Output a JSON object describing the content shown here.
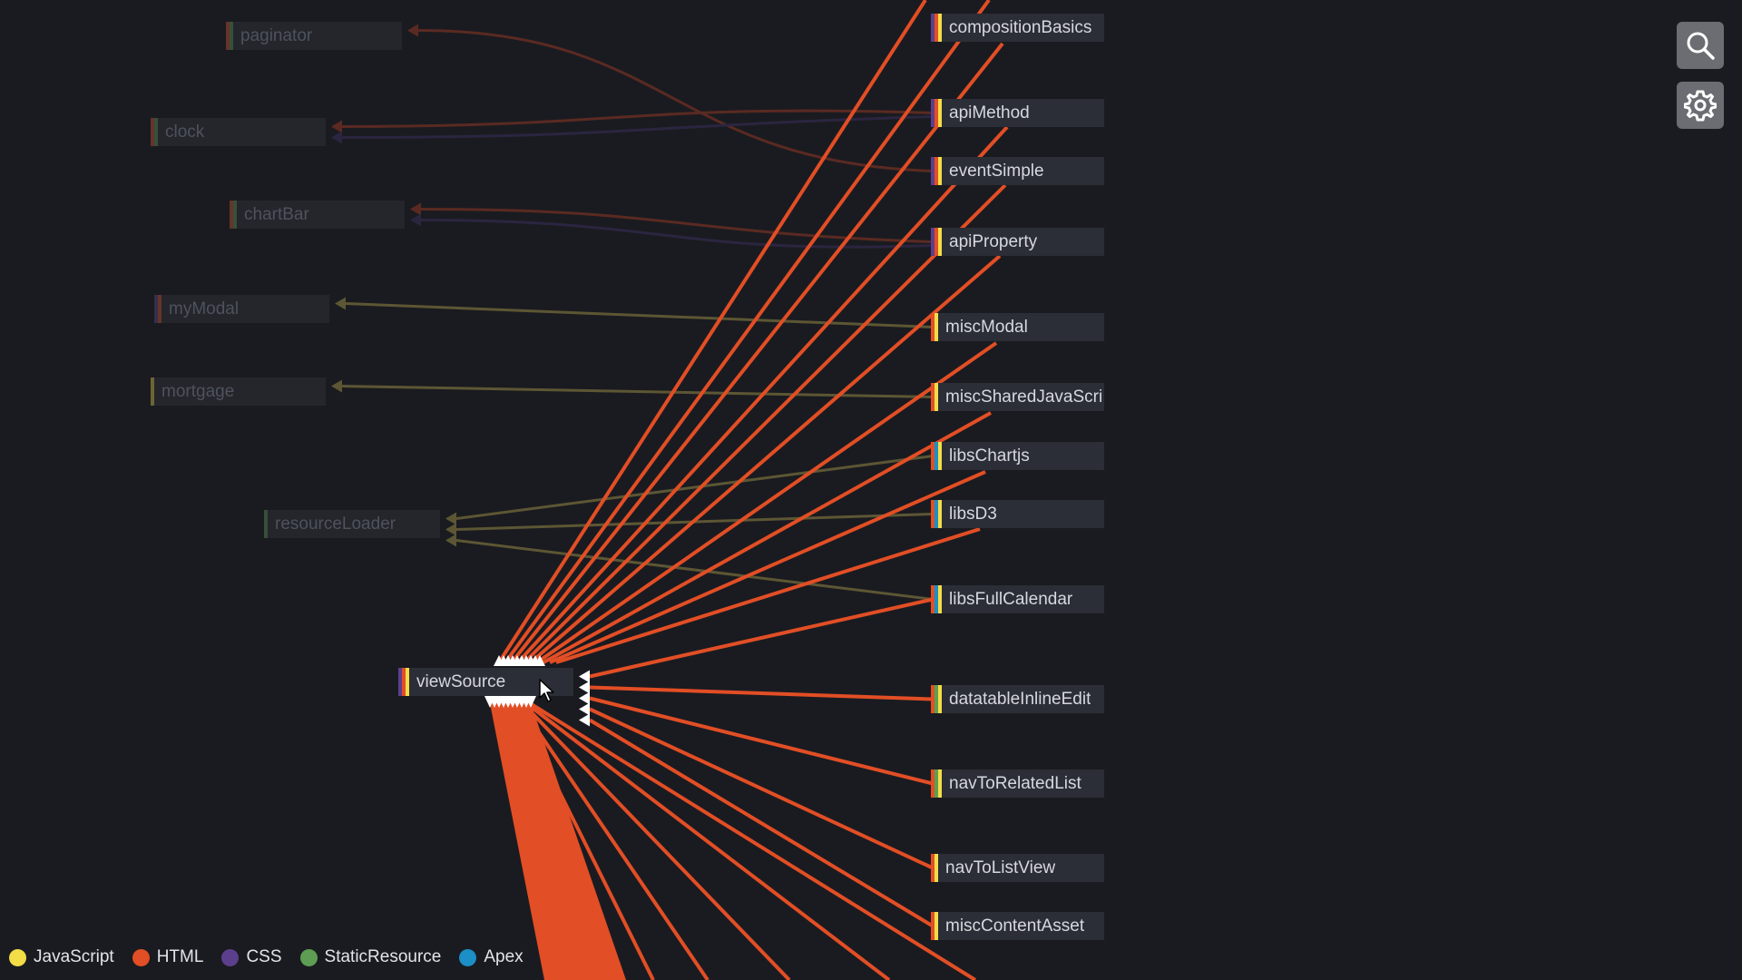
{
  "colors": {
    "background": "#1a1b20",
    "JavaScript": "#f3dd46",
    "HTML": "#e24e25",
    "CSS": "#5b3f8c",
    "StaticResource": "#5d9e52",
    "Apex": "#1b8fc6",
    "edge_olive": "#5c5634",
    "edge_dim_red": "#5a2a22",
    "edge_dim_purple": "#2b2540"
  },
  "nodes": [
    {
      "id": "paginator",
      "label": "paginator",
      "dim": true,
      "types": [
        "HTML",
        "StaticResource"
      ]
    },
    {
      "id": "clock",
      "label": "clock",
      "dim": true,
      "types": [
        "HTML",
        "StaticResource"
      ]
    },
    {
      "id": "chartBar",
      "label": "chartBar",
      "dim": true,
      "types": [
        "HTML",
        "StaticResource"
      ]
    },
    {
      "id": "myModal",
      "label": "myModal",
      "dim": true,
      "types": [
        "CSS",
        "HTML"
      ]
    },
    {
      "id": "mortgage",
      "label": "mortgage",
      "dim": true,
      "types": [
        "JavaScript"
      ]
    },
    {
      "id": "resourceLoader",
      "label": "resourceLoader",
      "dim": true,
      "types": [
        "StaticResource"
      ]
    },
    {
      "id": "viewSource",
      "label": "viewSource",
      "dim": false,
      "types": [
        "CSS",
        "HTML",
        "JavaScript"
      ]
    },
    {
      "id": "compositionBasics",
      "label": "compositionBasics",
      "dim": false,
      "types": [
        "CSS",
        "HTML",
        "JavaScript"
      ]
    },
    {
      "id": "apiMethod",
      "label": "apiMethod",
      "dim": false,
      "types": [
        "CSS",
        "HTML",
        "JavaScript"
      ]
    },
    {
      "id": "eventSimple",
      "label": "eventSimple",
      "dim": false,
      "types": [
        "CSS",
        "HTML",
        "JavaScript"
      ]
    },
    {
      "id": "apiProperty",
      "label": "apiProperty",
      "dim": false,
      "types": [
        "CSS",
        "HTML",
        "JavaScript"
      ]
    },
    {
      "id": "miscModal",
      "label": "miscModal",
      "dim": false,
      "types": [
        "HTML",
        "JavaScript"
      ]
    },
    {
      "id": "miscSharedJavaScript",
      "label": "miscSharedJavaScri",
      "dim": false,
      "types": [
        "HTML",
        "JavaScript"
      ]
    },
    {
      "id": "libsChartjs",
      "label": "libsChartjs",
      "dim": false,
      "types": [
        "HTML",
        "Apex",
        "JavaScript"
      ]
    },
    {
      "id": "libsD3",
      "label": "libsD3",
      "dim": false,
      "types": [
        "HTML",
        "Apex",
        "JavaScript"
      ]
    },
    {
      "id": "libsFullCalendar",
      "label": "libsFullCalendar",
      "dim": false,
      "types": [
        "HTML",
        "Apex",
        "JavaScript"
      ]
    },
    {
      "id": "datatableInlineEdit",
      "label": "datatableInlineEdit",
      "dim": false,
      "types": [
        "HTML",
        "StaticResource",
        "JavaScript"
      ]
    },
    {
      "id": "navToRelatedList",
      "label": "navToRelatedList",
      "dim": false,
      "types": [
        "HTML",
        "StaticResource",
        "JavaScript"
      ]
    },
    {
      "id": "navToListView",
      "label": "navToListView",
      "dim": false,
      "types": [
        "HTML",
        "JavaScript"
      ]
    },
    {
      "id": "miscContentAsset",
      "label": "miscContentAsset",
      "dim": false,
      "types": [
        "HTML",
        "JavaScript"
      ]
    }
  ],
  "edges": [
    {
      "from": "eventSimple",
      "to": "paginator",
      "kind": "dim_red"
    },
    {
      "from": "apiMethod",
      "to": "clock",
      "kind": "dim_red"
    },
    {
      "from": "apiMethod",
      "to": "clock",
      "kind": "dim_purple"
    },
    {
      "from": "apiProperty",
      "to": "chartBar",
      "kind": "dim_red"
    },
    {
      "from": "apiProperty",
      "to": "chartBar",
      "kind": "dim_purple"
    },
    {
      "from": "miscModal",
      "to": "myModal",
      "kind": "olive"
    },
    {
      "from": "miscSharedJavaScript",
      "to": "mortgage",
      "kind": "olive"
    },
    {
      "from": "libsChartjs",
      "to": "resourceLoader",
      "kind": "olive"
    },
    {
      "from": "libsD3",
      "to": "resourceLoader",
      "kind": "olive"
    },
    {
      "from": "libsFullCalendar",
      "to": "resourceLoader",
      "kind": "olive"
    },
    {
      "from": "libsFullCalendar",
      "to": "viewSource",
      "kind": "html"
    },
    {
      "from": "datatableInlineEdit",
      "to": "viewSource",
      "kind": "html"
    },
    {
      "from": "navToRelatedList",
      "to": "viewSource",
      "kind": "html"
    },
    {
      "from": "navToListView",
      "to": "viewSource",
      "kind": "html"
    },
    {
      "from": "miscContentAsset",
      "to": "viewSource",
      "kind": "html"
    }
  ],
  "legend": [
    {
      "label": "JavaScript",
      "type": "JavaScript"
    },
    {
      "label": "HTML",
      "type": "HTML"
    },
    {
      "label": "CSS",
      "type": "CSS"
    },
    {
      "label": "StaticResource",
      "type": "StaticResource"
    },
    {
      "label": "Apex",
      "type": "Apex"
    }
  ],
  "toolbar": {
    "search_icon": "search-icon",
    "settings_icon": "gear-icon"
  }
}
